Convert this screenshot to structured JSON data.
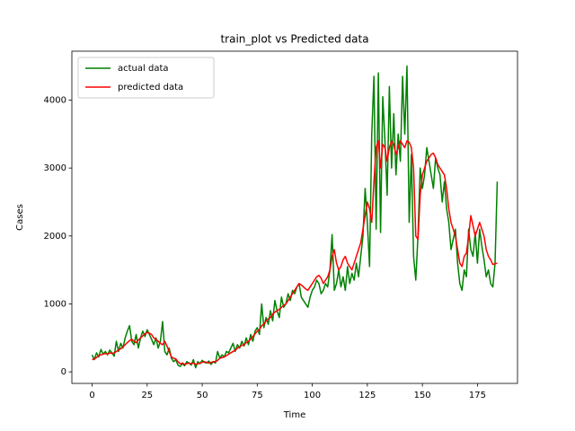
{
  "chart_data": {
    "type": "line",
    "title": "train_plot vs Predicted data",
    "xlabel": "Time",
    "ylabel": "Cases",
    "x": [
      0,
      1,
      2,
      3,
      4,
      5,
      6,
      7,
      8,
      9,
      10,
      11,
      12,
      13,
      14,
      15,
      16,
      17,
      18,
      19,
      20,
      21,
      22,
      23,
      24,
      25,
      26,
      27,
      28,
      29,
      30,
      31,
      32,
      33,
      34,
      35,
      36,
      37,
      38,
      39,
      40,
      41,
      42,
      43,
      44,
      45,
      46,
      47,
      48,
      49,
      50,
      51,
      52,
      53,
      54,
      55,
      56,
      57,
      58,
      59,
      60,
      61,
      62,
      63,
      64,
      65,
      66,
      67,
      68,
      69,
      70,
      71,
      72,
      73,
      74,
      75,
      76,
      77,
      78,
      79,
      80,
      81,
      82,
      83,
      84,
      85,
      86,
      87,
      88,
      89,
      90,
      91,
      92,
      93,
      94,
      95,
      96,
      97,
      98,
      99,
      100,
      101,
      102,
      103,
      104,
      105,
      106,
      107,
      108,
      109,
      110,
      111,
      112,
      113,
      114,
      115,
      116,
      117,
      118,
      119,
      120,
      121,
      122,
      123,
      124,
      125,
      126,
      127,
      128,
      129,
      130,
      131,
      132,
      133,
      134,
      135,
      136,
      137,
      138,
      139,
      140,
      141,
      142,
      143,
      144,
      145,
      146,
      147,
      148,
      149,
      150,
      151,
      152,
      153,
      154,
      155,
      156,
      157,
      158,
      159,
      160,
      161,
      162,
      163,
      164,
      165,
      166,
      167,
      168,
      169,
      170,
      171,
      172,
      173,
      174,
      175,
      176,
      177,
      178,
      179,
      180,
      181,
      182,
      183,
      184
    ],
    "series": [
      {
        "name": "actual data",
        "color": "#008000",
        "values": [
          250,
          180,
          280,
          220,
          330,
          260,
          300,
          250,
          320,
          280,
          230,
          450,
          300,
          420,
          350,
          500,
          600,
          680,
          450,
          400,
          550,
          350,
          500,
          600,
          520,
          620,
          550,
          480,
          400,
          500,
          350,
          450,
          740,
          300,
          250,
          350,
          200,
          150,
          180,
          100,
          80,
          120,
          90,
          150,
          130,
          100,
          180,
          60,
          150,
          120,
          170,
          140,
          130,
          160,
          110,
          150,
          130,
          300,
          200,
          250,
          220,
          300,
          280,
          350,
          420,
          300,
          400,
          350,
          450,
          380,
          500,
          400,
          550,
          450,
          600,
          650,
          550,
          1000,
          650,
          800,
          700,
          900,
          750,
          1050,
          900,
          800,
          1100,
          950,
          1000,
          1150,
          1050,
          1200,
          1150,
          1250,
          1300,
          1100,
          1050,
          1000,
          950,
          1100,
          1200,
          1250,
          1350,
          1300,
          1150,
          1200,
          1300,
          1250,
          1500,
          2020,
          1200,
          1300,
          1500,
          1250,
          1400,
          1200,
          1550,
          1300,
          1450,
          1350,
          1600,
          1400,
          1700,
          2000,
          2700,
          2200,
          1550,
          3500,
          4350,
          2100,
          4400,
          2050,
          4050,
          3400,
          2600,
          4200,
          3000,
          3800,
          2900,
          3500,
          3100,
          4350,
          3500,
          4500,
          2200,
          3200,
          1700,
          1350,
          2000,
          3000,
          2700,
          2900,
          3300,
          3100,
          2900,
          2700,
          3150,
          3000,
          2900,
          2500,
          2800,
          2400,
          2200,
          1800,
          1950,
          2100,
          1600,
          1300,
          1200,
          1500,
          1400,
          2100,
          1800,
          1700,
          2050,
          1600,
          2100,
          1850,
          1650,
          1400,
          1500,
          1300,
          1250,
          1600,
          2800
        ]
      },
      {
        "name": "predicted data",
        "color": "#ff0000",
        "values": [
          180,
          190,
          210,
          240,
          250,
          260,
          270,
          260,
          280,
          270,
          280,
          300,
          320,
          340,
          370,
          400,
          430,
          460,
          480,
          450,
          430,
          470,
          500,
          530,
          560,
          580,
          570,
          550,
          500,
          480,
          450,
          420,
          400,
          450,
          380,
          300,
          220,
          200,
          190,
          150,
          120,
          130,
          110,
          120,
          130,
          120,
          130,
          110,
          120,
          130,
          140,
          150,
          140,
          130,
          140,
          150,
          150,
          170,
          200,
          210,
          220,
          240,
          260,
          280,
          300,
          320,
          350,
          370,
          390,
          400,
          430,
          450,
          480,
          520,
          560,
          600,
          620,
          680,
          700,
          750,
          780,
          800,
          850,
          880,
          900,
          920,
          950,
          980,
          1000,
          1050,
          1100,
          1150,
          1200,
          1250,
          1300,
          1280,
          1250,
          1220,
          1200,
          1250,
          1300,
          1350,
          1400,
          1420,
          1380,
          1300,
          1350,
          1400,
          1500,
          1700,
          1800,
          1600,
          1500,
          1550,
          1650,
          1700,
          1600,
          1550,
          1500,
          1600,
          1700,
          1800,
          1900,
          2100,
          2300,
          2500,
          2400,
          2200,
          2800,
          3300,
          3400,
          3000,
          3350,
          3300,
          3100,
          3300,
          3400,
          3350,
          3200,
          3300,
          3400,
          3350,
          3300,
          3400,
          3380,
          3300,
          3000,
          2000,
          1950,
          2600,
          2900,
          3000,
          3100,
          3150,
          3200,
          3220,
          3150,
          3050,
          3000,
          2950,
          2900,
          2700,
          2400,
          2200,
          2100,
          2000,
          1800,
          1600,
          1550,
          1700,
          1750,
          2000,
          2300,
          2150,
          2000,
          2100,
          2200,
          2100,
          2000,
          1800,
          1700,
          1650,
          1580,
          1590,
          1600
        ]
      }
    ],
    "xlim": [
      -9.2,
      193.2
    ],
    "ylim": [
      -170,
      4720
    ],
    "xticks": [
      0,
      25,
      50,
      75,
      100,
      125,
      150,
      175
    ],
    "yticks": [
      0,
      1000,
      2000,
      3000,
      4000
    ],
    "legend": "upper left"
  }
}
